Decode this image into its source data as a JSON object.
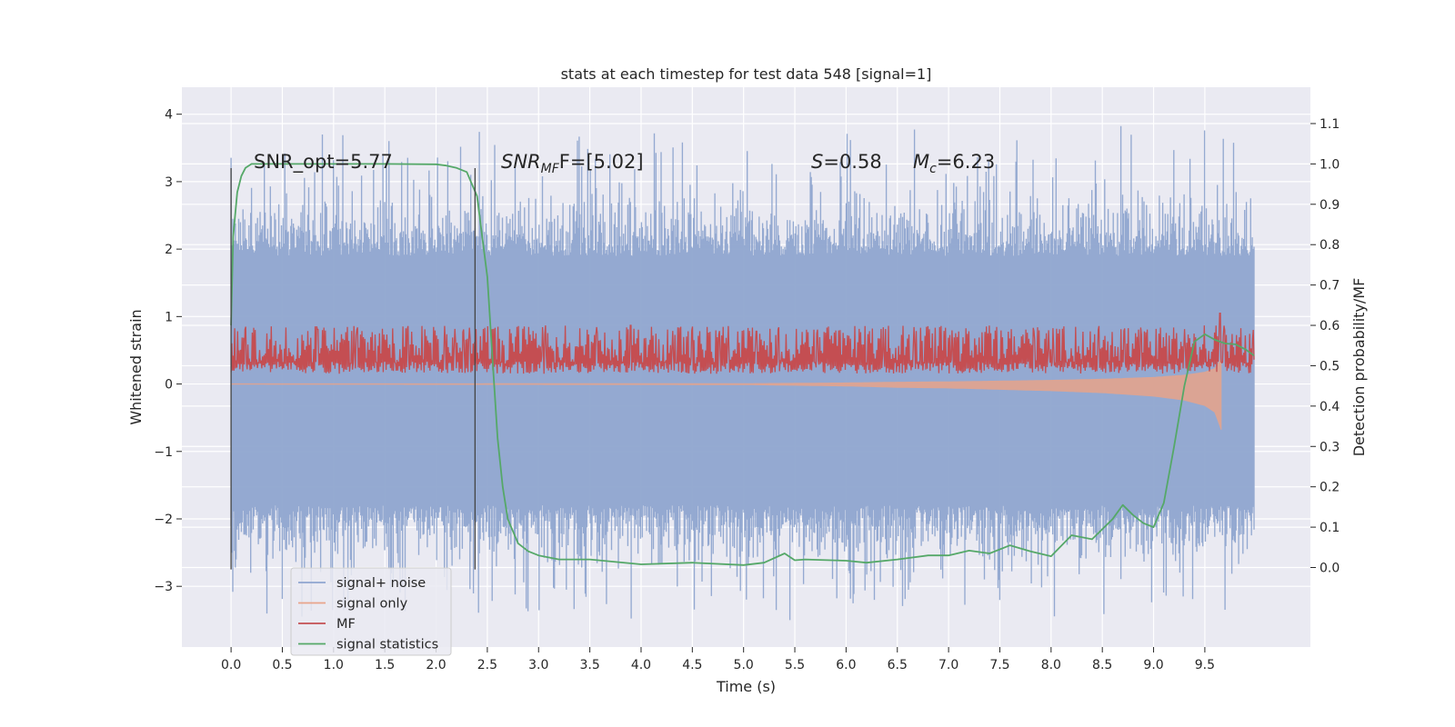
{
  "chart_data": {
    "type": "line",
    "title": "stats at each timestep for test data 548 [signal=1]",
    "xlabel": "Time (s)",
    "ylabel": "Whitened strain",
    "y2label": "Detection probability/MF",
    "xlim": [
      -0.48,
      10.53
    ],
    "ylim": [
      -3.9,
      4.4
    ],
    "y2lim": [
      -0.197,
      1.19
    ],
    "x_ticks": [
      0.0,
      0.5,
      1.0,
      1.5,
      2.0,
      2.5,
      3.0,
      3.5,
      4.0,
      4.5,
      5.0,
      5.5,
      6.0,
      6.5,
      7.0,
      7.5,
      8.0,
      8.5,
      9.0,
      9.5
    ],
    "x_tick_labels": [
      "0.0",
      "0.5",
      "1.0",
      "1.5",
      "2.0",
      "2.5",
      "3.0",
      "3.5",
      "4.0",
      "4.5",
      "5.0",
      "5.5",
      "6.0",
      "6.5",
      "7.0",
      "7.5",
      "8.0",
      "8.5",
      "9.0",
      "9.5"
    ],
    "y_ticks": [
      4,
      3,
      2,
      1,
      0,
      -1,
      -2,
      -3
    ],
    "y_tick_labels": [
      "4",
      "3",
      "2",
      "1",
      "0",
      "−1",
      "−2",
      "−3"
    ],
    "y2_ticks": [
      1.1,
      1.0,
      0.9,
      0.8,
      0.7,
      0.6,
      0.5,
      0.4,
      0.3,
      0.2,
      0.1,
      0.0
    ],
    "y2_tick_labels": [
      "1.1",
      "1.0",
      "0.9",
      "0.8",
      "0.7",
      "0.6",
      "0.5",
      "0.4",
      "0.3",
      "0.2",
      "0.1",
      "0.0"
    ],
    "grid": true,
    "legend_position": "lower-left",
    "annotations": {
      "snr_opt": "SNR_opt=5.77",
      "snr_mf_base": "SNR",
      "snr_mf_sub": "MF",
      "snr_mf_rest": "F=[5.02]",
      "s_var": "S",
      "s_rest": "=0.58",
      "mc_var": "M",
      "mc_sub": "c",
      "mc_rest": "=6.23"
    },
    "vertical_markers": {
      "times": [
        0.0,
        2.38
      ],
      "range": [
        -2.75,
        3.2
      ]
    },
    "series": [
      {
        "name": "signal+ noise",
        "color": "#8fa5cf",
        "axis": "left",
        "time_range": [
          0.0,
          9.98
        ],
        "envelope": {
          "core_low": -1.8,
          "core_high": 1.9,
          "spike_low_min": -3.7,
          "spike_high_max": 4.05
        }
      },
      {
        "name": "signal only",
        "color": "#e8a48a",
        "axis": "left",
        "time_range": [
          0.0,
          9.66
        ],
        "description_points": {
          "t": [
            0.0,
            5.0,
            5.5,
            6.0,
            6.5,
            7.0,
            7.5,
            8.0,
            8.5,
            9.0,
            9.3,
            9.5,
            9.6,
            9.66
          ],
          "amplitude": [
            0.005,
            0.01,
            0.02,
            0.03,
            0.05,
            0.06,
            0.08,
            0.1,
            0.13,
            0.18,
            0.24,
            0.32,
            0.42,
            0.68
          ]
        }
      },
      {
        "name": "MF",
        "color": "#c44e52",
        "axis": "right",
        "time_range": [
          0.0,
          9.98
        ],
        "band": [
          0.48,
          0.6
        ],
        "spikes": [
          {
            "t": 3.9,
            "v": 0.6
          },
          {
            "t": 9.65,
            "v": 0.63
          }
        ]
      },
      {
        "name": "signal statistics",
        "color": "#55a868",
        "axis": "right",
        "x": [
          0.0,
          0.02,
          0.06,
          0.1,
          0.14,
          0.2,
          0.3,
          0.5,
          1.0,
          1.5,
          2.0,
          2.1,
          2.2,
          2.3,
          2.4,
          2.5,
          2.55,
          2.6,
          2.65,
          2.7,
          2.8,
          2.9,
          3.0,
          3.2,
          3.5,
          4.0,
          4.5,
          5.0,
          5.2,
          5.4,
          5.5,
          5.6,
          6.0,
          6.2,
          6.5,
          6.8,
          7.0,
          7.2,
          7.4,
          7.6,
          7.8,
          8.0,
          8.2,
          8.4,
          8.6,
          8.7,
          8.8,
          8.9,
          9.0,
          9.1,
          9.2,
          9.3,
          9.4,
          9.5,
          9.6,
          9.7,
          9.8,
          9.9,
          9.98
        ],
        "values": [
          0.6,
          0.82,
          0.93,
          0.97,
          0.99,
          1.0,
          1.0,
          1.0,
          1.0,
          1.0,
          0.999,
          0.996,
          0.99,
          0.98,
          0.92,
          0.72,
          0.52,
          0.32,
          0.2,
          0.12,
          0.06,
          0.04,
          0.03,
          0.02,
          0.02,
          0.008,
          0.012,
          0.006,
          0.012,
          0.035,
          0.018,
          0.02,
          0.017,
          0.012,
          0.02,
          0.03,
          0.03,
          0.042,
          0.035,
          0.055,
          0.04,
          0.028,
          0.08,
          0.07,
          0.12,
          0.155,
          0.13,
          0.11,
          0.1,
          0.16,
          0.3,
          0.45,
          0.56,
          0.578,
          0.564,
          0.555,
          0.553,
          0.54,
          0.525
        ]
      }
    ]
  }
}
